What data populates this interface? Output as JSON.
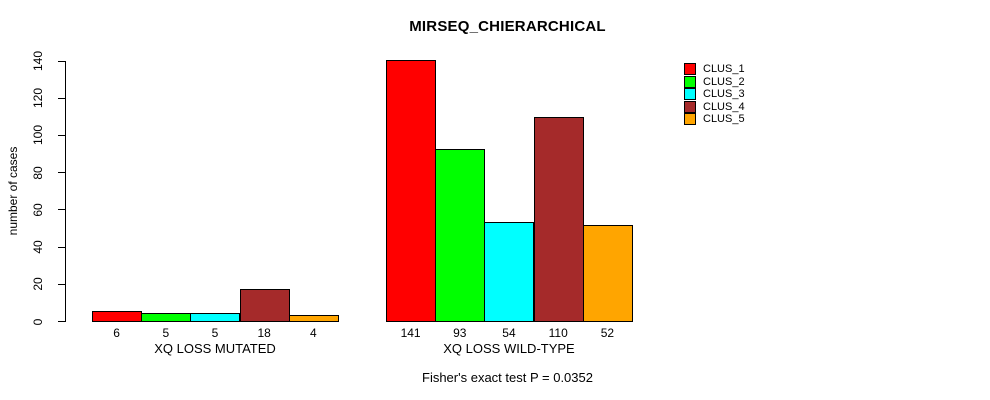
{
  "chart_data": {
    "type": "bar",
    "title": "MIRSEQ_CHIERARCHICAL",
    "ylabel": "number of cases",
    "xlabel": "",
    "ylim": [
      0,
      140
    ],
    "yticks": [
      0,
      20,
      40,
      60,
      80,
      100,
      120,
      140
    ],
    "grid": false,
    "legend_position": "right-inside",
    "categories": [
      "XQ LOSS MUTATED",
      "XQ LOSS WILD-TYPE"
    ],
    "series": [
      {
        "name": "CLUS_1",
        "color": "#FF0000",
        "values": [
          6,
          141
        ]
      },
      {
        "name": "CLUS_2",
        "color": "#00FF00",
        "values": [
          5,
          93
        ]
      },
      {
        "name": "CLUS_3",
        "color": "#00FFFF",
        "values": [
          5,
          54
        ]
      },
      {
        "name": "CLUS_4",
        "color": "#A52A2A",
        "values": [
          18,
          110
        ]
      },
      {
        "name": "CLUS_5",
        "color": "#FFA500",
        "values": [
          4,
          52
        ]
      }
    ],
    "value_labels_under_bars": true,
    "annotation": "Fisher's exact test P = 0.0352"
  }
}
